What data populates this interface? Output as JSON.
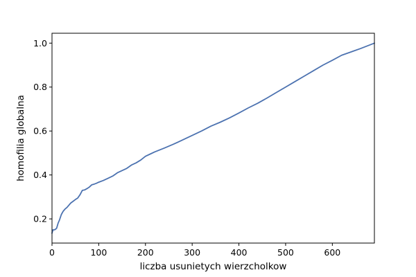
{
  "chart_data": {
    "type": "line",
    "title": "",
    "xlabel": "liczba usunietych wierzcholkow",
    "ylabel": "homofilia globalna",
    "xlim": [
      0,
      690
    ],
    "ylim": [
      0.09,
      1.045
    ],
    "xticks": [
      0,
      100,
      200,
      300,
      400,
      500,
      600
    ],
    "xtick_labels": [
      "0",
      "100",
      "200",
      "300",
      "400",
      "500",
      "600"
    ],
    "yticks": [
      0.2,
      0.4,
      0.6,
      0.8,
      1.0
    ],
    "ytick_labels": [
      "0.2",
      "0.4",
      "0.6",
      "0.8",
      "1.0"
    ],
    "grid": false,
    "legend": "none",
    "series": [
      {
        "color": "#4c72b0",
        "x": [
          0,
          2,
          4,
          7,
          10,
          13,
          16,
          20,
          24,
          28,
          32,
          36,
          40,
          45,
          50,
          55,
          60,
          65,
          70,
          75,
          80,
          85,
          90,
          95,
          100,
          110,
          120,
          130,
          140,
          150,
          160,
          170,
          180,
          190,
          200,
          210,
          220,
          240,
          260,
          280,
          300,
          320,
          340,
          360,
          380,
          400,
          420,
          440,
          460,
          480,
          500,
          520,
          540,
          560,
          580,
          600,
          620,
          640,
          660,
          690
        ],
        "y": [
          0.135,
          0.15,
          0.15,
          0.152,
          0.158,
          0.18,
          0.195,
          0.22,
          0.235,
          0.245,
          0.252,
          0.262,
          0.272,
          0.28,
          0.288,
          0.295,
          0.31,
          0.33,
          0.332,
          0.338,
          0.345,
          0.355,
          0.358,
          0.362,
          0.367,
          0.375,
          0.385,
          0.395,
          0.41,
          0.42,
          0.43,
          0.445,
          0.455,
          0.468,
          0.485,
          0.495,
          0.505,
          0.522,
          0.54,
          0.56,
          0.58,
          0.6,
          0.622,
          0.64,
          0.66,
          0.682,
          0.705,
          0.726,
          0.75,
          0.775,
          0.8,
          0.825,
          0.85,
          0.875,
          0.9,
          0.922,
          0.945,
          0.96,
          0.975,
          1.0
        ]
      }
    ]
  }
}
